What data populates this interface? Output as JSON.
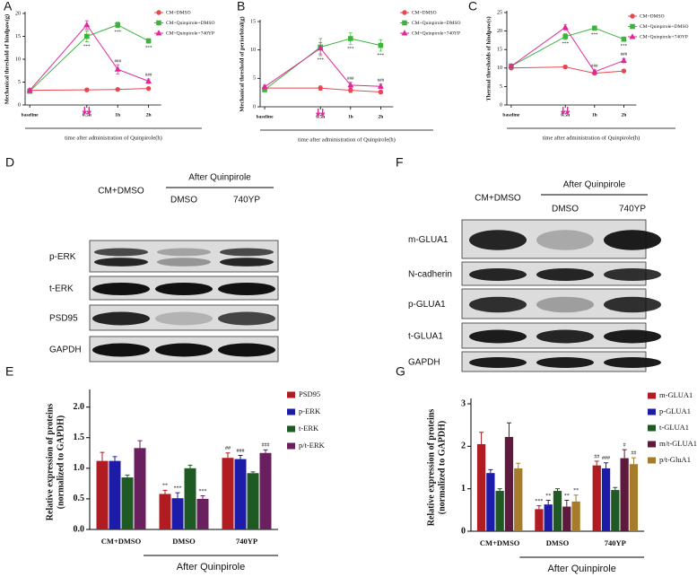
{
  "chart_data": [
    {
      "panel": "A",
      "type": "line",
      "ylabel": "Mechanical threshold of hindpaw(g)",
      "xlabel": "time after administration of Quinpirole(h)",
      "categories": [
        "baseline",
        "0.5h",
        "1h",
        "2h"
      ],
      "ylim": [
        0,
        20
      ],
      "yticks": [
        0,
        5,
        10,
        15,
        20
      ],
      "series": [
        {
          "name": "CM+DMSO",
          "color": "#e8474f",
          "values": [
            3.2,
            3.3,
            3.4,
            3.6
          ],
          "errors": [
            0.2,
            0.3,
            0.2,
            0.2
          ],
          "annotations": [
            null,
            null,
            null,
            null
          ]
        },
        {
          "name": "CM+Quinpirole+DMSO",
          "color": "#3cb43c",
          "values": [
            3.0,
            15,
            17.5,
            14
          ],
          "errors": [
            0.3,
            1.2,
            0.6,
            0.5
          ],
          "annotations": [
            null,
            "***",
            "***",
            "***"
          ]
        },
        {
          "name": "CM+Quinpirole+740YP",
          "color": "#e0289a",
          "values": [
            3.2,
            17.5,
            7.8,
            5.2
          ],
          "errors": [
            0.3,
            0.9,
            1.0,
            0.5
          ],
          "annotations": [
            null,
            null,
            "###",
            "###"
          ]
        }
      ]
    },
    {
      "panel": "B",
      "type": "line",
      "ylabel": "Mechanical threshold of periorbital(g)",
      "xlabel": "time after administration of Quinpirole(h)",
      "categories": [
        "baseline",
        "0.5h",
        "1h",
        "2h"
      ],
      "ylim": [
        0,
        15
      ],
      "yticks": [
        0,
        5,
        10,
        15
      ],
      "series": [
        {
          "name": "CM+DMSO",
          "color": "#e8474f",
          "values": [
            3.3,
            3.3,
            2.9,
            2.6
          ],
          "errors": [
            0.3,
            0.4,
            0.4,
            0.3
          ],
          "annotations": [
            null,
            null,
            null,
            null
          ]
        },
        {
          "name": "CM+Quinpirole+DMSO",
          "color": "#3cb43c",
          "values": [
            3.0,
            10.5,
            12,
            10.8
          ],
          "errors": [
            0.3,
            1.5,
            1.0,
            1.0
          ],
          "annotations": [
            null,
            "***",
            "***",
            "***"
          ]
        },
        {
          "name": "CM+Quinpirole+740YP",
          "color": "#e0289a",
          "values": [
            3.5,
            10.3,
            3.8,
            3.6
          ],
          "errors": [
            0.3,
            1.0,
            0.5,
            0.4
          ],
          "annotations": [
            null,
            null,
            "###",
            "###"
          ]
        }
      ]
    },
    {
      "panel": "C",
      "type": "line",
      "ylabel": "Thermal thresholds of hindpaw(s)",
      "xlabel": "time after administration of Quinpirole(h)",
      "categories": [
        "baseline",
        "0.5h",
        "1h",
        "2h"
      ],
      "ylim": [
        0,
        25
      ],
      "yticks": [
        0,
        5,
        10,
        15,
        20,
        25
      ],
      "series": [
        {
          "name": "CM+DMSO",
          "color": "#e8474f",
          "values": [
            10,
            10.3,
            8.6,
            9.2
          ],
          "errors": [
            0.3,
            0.4,
            0.4,
            0.4
          ],
          "annotations": [
            null,
            null,
            null,
            null
          ]
        },
        {
          "name": "CM+Quinpirole+DMSO",
          "color": "#3cb43c",
          "values": [
            10.5,
            18.5,
            20.8,
            17.8
          ],
          "errors": [
            0.3,
            0.8,
            0.6,
            0.6
          ],
          "annotations": [
            null,
            "***",
            "***",
            "***"
          ]
        },
        {
          "name": "CM+Quinpirole+740YP",
          "color": "#e0289a",
          "values": [
            10.5,
            21,
            9,
            12
          ],
          "errors": [
            0.3,
            0.8,
            0.5,
            0.6
          ],
          "annotations": [
            null,
            null,
            "###",
            "###"
          ]
        }
      ]
    },
    {
      "panel": "E",
      "type": "bar",
      "ylabel": [
        "Relative expression of proteins",
        "(normalized to GAPDH)"
      ],
      "categories": [
        "CM+DMSO",
        "DMSO",
        "740YP"
      ],
      "group_label": "After Quinpirole",
      "ylim": [
        0,
        2.2
      ],
      "yticks": [
        {
          "value": 0,
          "label": "0.0"
        },
        {
          "value": 0.5,
          "label": "0.5"
        },
        {
          "value": 1,
          "label": "1.0"
        },
        {
          "value": 1.5,
          "label": "1.5"
        },
        {
          "value": 2,
          "label": "2.0"
        }
      ],
      "series": [
        {
          "name": "PSD95",
          "color": "#b01c22",
          "values": [
            1.12,
            0.58,
            1.17
          ],
          "errors": [
            0.14,
            0.06,
            0.08
          ],
          "annotations": [
            null,
            "**",
            "##"
          ]
        },
        {
          "name": "p-ERK",
          "color": "#1c1ca8",
          "values": [
            1.12,
            0.51,
            1.15
          ],
          "errors": [
            0.07,
            0.09,
            0.06
          ],
          "annotations": [
            null,
            "***",
            "###"
          ]
        },
        {
          "name": "t-ERK",
          "color": "#1f5a24",
          "values": [
            0.85,
            1.0,
            0.92
          ],
          "errors": [
            0.04,
            0.05,
            0.02
          ],
          "annotations": [
            null,
            null,
            null
          ]
        },
        {
          "name": "p/t-ERK",
          "color": "#6a1f5e",
          "values": [
            1.33,
            0.5,
            1.25
          ],
          "errors": [
            0.12,
            0.05,
            0.05
          ],
          "annotations": [
            null,
            "***",
            "###"
          ]
        }
      ]
    },
    {
      "panel": "G",
      "type": "bar",
      "ylabel": [
        "Relative expression of proteins",
        "(normalized to GAPDH)"
      ],
      "categories": [
        "CM+DMSO",
        "DMSO",
        "740YP"
      ],
      "group_label": "After Quinpirole",
      "ylim": [
        0,
        3
      ],
      "yticks": [
        0,
        1,
        2,
        3
      ],
      "series": [
        {
          "name": "m-GLUA1",
          "color": "#b01c22",
          "values": [
            2.05,
            0.52,
            1.55
          ],
          "errors": [
            0.28,
            0.08,
            0.1
          ],
          "annotations": [
            null,
            "***",
            "##"
          ]
        },
        {
          "name": "p-GLUA1",
          "color": "#1c1ca8",
          "values": [
            1.37,
            0.63,
            1.48
          ],
          "errors": [
            0.08,
            0.1,
            0.13
          ],
          "annotations": [
            null,
            "**",
            "###"
          ]
        },
        {
          "name": "t-GLUA1",
          "color": "#1f5a24",
          "values": [
            0.95,
            0.95,
            0.97
          ],
          "errors": [
            0.05,
            0.05,
            0.06
          ],
          "annotations": [
            null,
            null,
            null
          ]
        },
        {
          "name": "m/t-GLUA1",
          "color": "#5e1a3c",
          "values": [
            2.22,
            0.58,
            1.72
          ],
          "errors": [
            0.33,
            0.15,
            0.2
          ],
          "annotations": [
            null,
            "**",
            "#"
          ]
        },
        {
          "name": "p/t-GluA1",
          "color": "#a67c2c",
          "values": [
            1.48,
            0.7,
            1.58
          ],
          "errors": [
            0.12,
            0.15,
            0.15
          ],
          "annotations": [
            null,
            "**",
            "##"
          ]
        }
      ]
    }
  ],
  "blots": [
    {
      "panel": "D",
      "group_label": "After Quinpirole",
      "lanes": [
        "CM+DMSO",
        "DMSO",
        "740YP"
      ],
      "rows": [
        "p-ERK",
        "t-ERK",
        "PSD95",
        "GAPDH"
      ]
    },
    {
      "panel": "F",
      "group_label": "After Quinpirole",
      "lanes": [
        "CM+DMSO",
        "DMSO",
        "740YP"
      ],
      "rows": [
        "m-GLUA1",
        "N-cadherin",
        "p-GLUA1",
        "t-GLUA1",
        "GAPDH"
      ]
    }
  ]
}
